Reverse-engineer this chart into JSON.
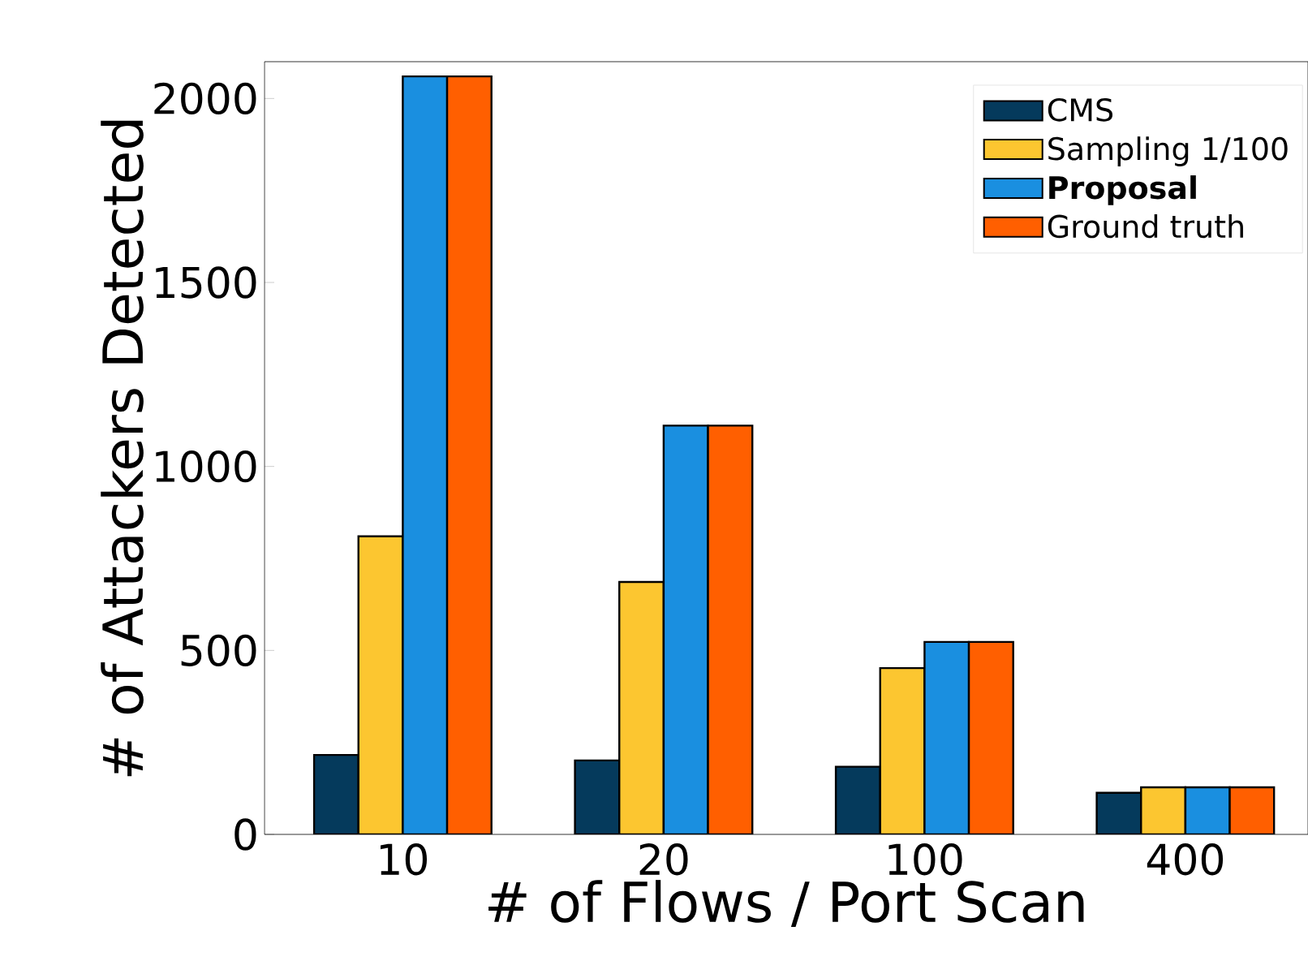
{
  "chart_data": {
    "type": "bar",
    "xlabel": "# of Flows / Port Scan",
    "ylabel": "# of Attackers Detected",
    "categories": [
      "10",
      "20",
      "100",
      "400"
    ],
    "series": [
      {
        "name": "CMS",
        "color": "#053a5c",
        "values": [
          216,
          201,
          184,
          113
        ]
      },
      {
        "name": "Sampling 1/100",
        "color": "#fcc630",
        "values": [
          810,
          686,
          452,
          128
        ]
      },
      {
        "name": "Proposal",
        "color": "#1a8fe0",
        "values": [
          2060,
          1111,
          523,
          128
        ]
      },
      {
        "name": "Ground truth",
        "color": "#ff5f00",
        "values": [
          2060,
          1111,
          523,
          128
        ]
      }
    ],
    "ylim": [
      0,
      2100
    ],
    "yticks": [
      0,
      500,
      1000,
      1500,
      2000
    ],
    "grid": false,
    "legend": "top right"
  }
}
